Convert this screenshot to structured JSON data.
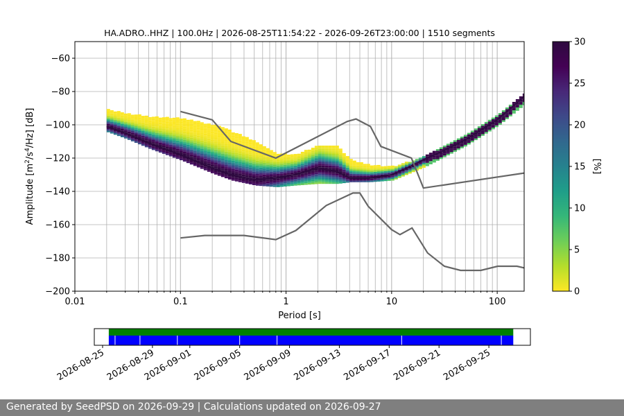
{
  "footer": {
    "text": "Generated by SeedPSD on 2026-09-29 | Calculations updated on 2026-09-27"
  },
  "chart_data": [
    {
      "type": "heatmap",
      "title": "HA.ADRO..HHZ | 100.0Hz | 2026-08-25T11:54:22 - 2026-09-26T23:00:00 | 1510 segments",
      "xlabel": "Period [s]",
      "ylabel": "Amplitude [m²/s⁴/Hz] [dB]",
      "xscale": "log",
      "xlim": [
        0.01,
        180
      ],
      "ylim": [
        -200,
        -50
      ],
      "xticks": [
        0.01,
        0.1,
        1,
        10,
        100
      ],
      "xtick_labels": [
        "0.01",
        "0.1",
        "1",
        "10",
        "100"
      ],
      "yticks": [
        -60,
        -80,
        -100,
        -120,
        -140,
        -160,
        -180,
        -200
      ],
      "grid": true,
      "colorbar": {
        "label": "[%]",
        "range": [
          0,
          30
        ],
        "ticks": [
          0,
          5,
          10,
          15,
          20,
          25,
          30
        ],
        "colormap": [
          "#fde725",
          "#b5de2b",
          "#6ece58",
          "#35b779",
          "#1f9e89",
          "#26828e",
          "#31688e",
          "#3e4989",
          "#482878",
          "#440154",
          "#2d0a3f"
        ]
      },
      "mode_curve": [
        [
          0.02,
          -101
        ],
        [
          0.03,
          -105
        ],
        [
          0.05,
          -111
        ],
        [
          0.1,
          -118
        ],
        [
          0.2,
          -126
        ],
        [
          0.3,
          -130
        ],
        [
          0.5,
          -133
        ],
        [
          0.8,
          -132
        ],
        [
          1.2,
          -130
        ],
        [
          2,
          -126
        ],
        [
          3,
          -128
        ],
        [
          4,
          -132
        ],
        [
          6,
          -132
        ],
        [
          8,
          -131
        ],
        [
          10,
          -130
        ],
        [
          15,
          -125
        ],
        [
          20,
          -121
        ],
        [
          30,
          -116
        ],
        [
          50,
          -109
        ],
        [
          100,
          -97
        ],
        [
          180,
          -83
        ]
      ],
      "distribution": [
        {
          "period": 0.02,
          "low": -104,
          "high": -91
        },
        {
          "period": 0.03,
          "low": -108,
          "high": -93
        },
        {
          "period": 0.05,
          "low": -114,
          "high": -95
        },
        {
          "period": 0.1,
          "low": -121,
          "high": -96
        },
        {
          "period": 0.2,
          "low": -129,
          "high": -100
        },
        {
          "period": 0.3,
          "low": -133,
          "high": -104
        },
        {
          "period": 0.5,
          "low": -136,
          "high": -110
        },
        {
          "period": 0.8,
          "low": -137,
          "high": -117
        },
        {
          "period": 1.2,
          "low": -136,
          "high": -118
        },
        {
          "period": 2,
          "low": -135,
          "high": -112
        },
        {
          "period": 3,
          "low": -135,
          "high": -113
        },
        {
          "period": 4,
          "low": -134,
          "high": -121
        },
        {
          "period": 6,
          "low": -134,
          "high": -124
        },
        {
          "period": 10,
          "low": -133,
          "high": -125
        },
        {
          "period": 20,
          "low": -125,
          "high": -119
        },
        {
          "period": 50,
          "low": -112,
          "high": -106
        },
        {
          "period": 100,
          "low": -100,
          "high": -94
        },
        {
          "period": 180,
          "low": -87,
          "high": -81
        }
      ],
      "noise_models": [
        {
          "label": "",
          "points": [
            [
              0.1,
              -92
            ],
            [
              0.2,
              -97
            ],
            [
              0.3,
              -110
            ],
            [
              0.8,
              -120
            ],
            [
              3.8,
              -98
            ],
            [
              4.6,
              -96.5
            ],
            [
              6.3,
              -101
            ],
            [
              7.9,
              -113
            ],
            [
              15.4,
              -120
            ],
            [
              20,
              -138
            ],
            [
              180,
              -129
            ]
          ]
        },
        {
          "label": "",
          "points": [
            [
              0.1,
              -168
            ],
            [
              0.17,
              -166.5
            ],
            [
              0.4,
              -166.5
            ],
            [
              0.8,
              -169
            ],
            [
              1.24,
              -163.5
            ],
            [
              2.4,
              -148.5
            ],
            [
              4.3,
              -141
            ],
            [
              5,
              -141
            ],
            [
              6,
              -149
            ],
            [
              10,
              -163
            ],
            [
              12,
              -166
            ],
            [
              15.6,
              -162
            ],
            [
              21.9,
              -177
            ],
            [
              31.6,
              -185
            ],
            [
              45,
              -187.5
            ],
            [
              70,
              -187.5
            ],
            [
              101,
              -185
            ],
            [
              154,
              -185
            ],
            [
              180,
              -186
            ]
          ]
        }
      ]
    },
    {
      "type": "timeline",
      "x_tick_labels": [
        "2026-08-25",
        "2026-08-29",
        "2026-09-01",
        "2026-09-05",
        "2026-09-09",
        "2026-09-13",
        "2026-09-17",
        "2026-09-21",
        "2026-09-25"
      ],
      "x_tick_dates": [
        "2026-08-25",
        "2026-08-29",
        "2026-09-01",
        "2026-09-05",
        "2026-09-09",
        "2026-09-13",
        "2026-09-17",
        "2026-09-21",
        "2026-09-25"
      ],
      "xlim": [
        "2026-08-24T08:00:00",
        "2026-09-28T08:00:00"
      ],
      "data_availability": {
        "start": "2026-08-25T11:54:22",
        "end": "2026-09-26T23:00:00",
        "color": "#008000"
      },
      "psd_coverage": {
        "start": "2026-08-25T11:54:22",
        "end": "2026-09-26T23:00:00",
        "color": "#0000ff"
      },
      "gaps": [
        "2026-08-26T00:00:00",
        "2026-08-28T00:00:00",
        "2026-08-31T00:00:00",
        "2026-09-05T00:00:00",
        "2026-09-08T00:00:00",
        "2026-09-18T00:00:00",
        "2026-09-26T00:00:00"
      ]
    }
  ]
}
